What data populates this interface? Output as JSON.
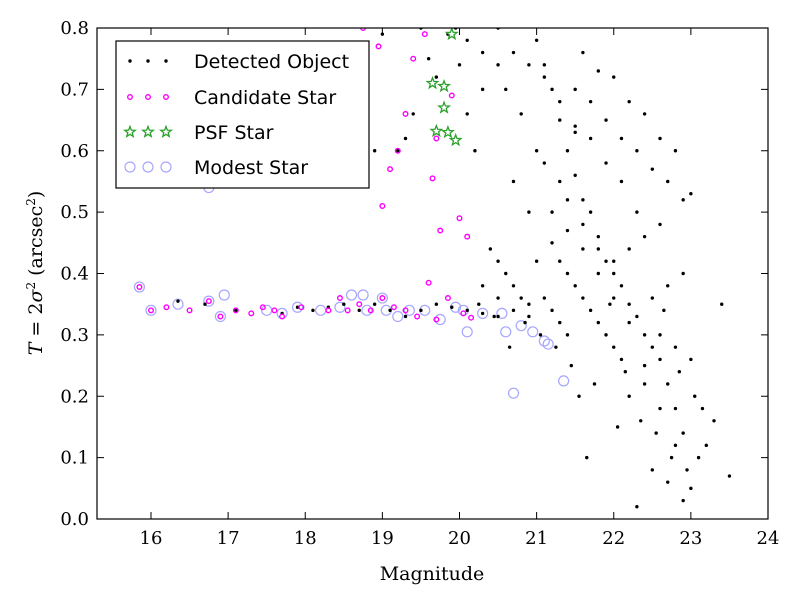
{
  "chart_data": {
    "type": "scatter",
    "title": "",
    "xlabel": "Magnitude",
    "ylabel_parts": {
      "t": "T",
      "eq": " = 2",
      "sigma": "σ",
      "sup": "2",
      "open": " (arcsec",
      "close": ")"
    },
    "xlim": [
      15.3,
      24
    ],
    "ylim": [
      0.0,
      0.8
    ],
    "xticks": [
      16,
      17,
      18,
      19,
      20,
      21,
      22,
      23,
      24
    ],
    "yticks": [
      0.0,
      0.1,
      0.2,
      0.3,
      0.4,
      0.5,
      0.6,
      0.7,
      0.8
    ],
    "grid": false,
    "legend_position": "top-left",
    "series": [
      {
        "name": "Detected Object",
        "marker": "dot",
        "color": "#000000",
        "points": [
          [
            19.85,
            0.79
          ],
          [
            19.95,
            0.8
          ],
          [
            20.1,
            0.78
          ],
          [
            20.3,
            0.76
          ],
          [
            20.5,
            0.8
          ],
          [
            20.6,
            0.7
          ],
          [
            20.8,
            0.66
          ],
          [
            20.2,
            0.6
          ],
          [
            20.7,
            0.55
          ],
          [
            20.9,
            0.5
          ],
          [
            21.0,
            0.78
          ],
          [
            21.1,
            0.74
          ],
          [
            21.2,
            0.7
          ],
          [
            21.3,
            0.65
          ],
          [
            21.4,
            0.6
          ],
          [
            21.5,
            0.56
          ],
          [
            21.6,
            0.52
          ],
          [
            21.7,
            0.5
          ],
          [
            21.8,
            0.46
          ],
          [
            21.9,
            0.42
          ],
          [
            22.0,
            0.4
          ],
          [
            22.1,
            0.38
          ],
          [
            22.2,
            0.35
          ],
          [
            22.3,
            0.33
          ],
          [
            22.4,
            0.3
          ],
          [
            22.5,
            0.28
          ],
          [
            22.6,
            0.26
          ],
          [
            22.7,
            0.22
          ],
          [
            22.8,
            0.18
          ],
          [
            22.9,
            0.14
          ],
          [
            21.2,
            0.45
          ],
          [
            21.3,
            0.42
          ],
          [
            21.4,
            0.4
          ],
          [
            21.5,
            0.38
          ],
          [
            21.6,
            0.36
          ],
          [
            21.7,
            0.34
          ],
          [
            21.8,
            0.32
          ],
          [
            21.9,
            0.3
          ],
          [
            22.0,
            0.28
          ],
          [
            22.1,
            0.26
          ],
          [
            21.0,
            0.6
          ],
          [
            21.1,
            0.58
          ],
          [
            21.3,
            0.55
          ],
          [
            21.4,
            0.52
          ],
          [
            21.6,
            0.48
          ],
          [
            21.8,
            0.44
          ],
          [
            22.0,
            0.42
          ],
          [
            22.2,
            0.44
          ],
          [
            22.4,
            0.46
          ],
          [
            22.6,
            0.48
          ],
          [
            21.5,
            0.7
          ],
          [
            21.7,
            0.68
          ],
          [
            21.9,
            0.65
          ],
          [
            22.1,
            0.62
          ],
          [
            22.3,
            0.6
          ],
          [
            22.5,
            0.57
          ],
          [
            22.7,
            0.55
          ],
          [
            22.9,
            0.52
          ],
          [
            21.6,
            0.76
          ],
          [
            21.8,
            0.73
          ],
          [
            22.0,
            0.72
          ],
          [
            22.2,
            0.68
          ],
          [
            22.4,
            0.66
          ],
          [
            22.6,
            0.62
          ],
          [
            22.8,
            0.6
          ],
          [
            23.0,
            0.53
          ],
          [
            21.1,
            0.36
          ],
          [
            21.2,
            0.34
          ],
          [
            21.3,
            0.32
          ],
          [
            21.4,
            0.3
          ],
          [
            20.4,
            0.44
          ],
          [
            20.5,
            0.42
          ],
          [
            20.6,
            0.4
          ],
          [
            20.7,
            0.38
          ],
          [
            20.8,
            0.36
          ],
          [
            20.9,
            0.35
          ],
          [
            20.3,
            0.38
          ],
          [
            20.5,
            0.36
          ],
          [
            20.7,
            0.34
          ],
          [
            20.9,
            0.33
          ],
          [
            21.0,
            0.42
          ],
          [
            21.2,
            0.5
          ],
          [
            21.4,
            0.47
          ],
          [
            21.6,
            0.44
          ],
          [
            21.8,
            0.4
          ],
          [
            22.0,
            0.36
          ],
          [
            22.2,
            0.32
          ],
          [
            22.4,
            0.22
          ],
          [
            22.6,
            0.18
          ],
          [
            22.8,
            0.12
          ],
          [
            22.3,
            0.02
          ],
          [
            22.9,
            0.03
          ],
          [
            22.5,
            0.08
          ],
          [
            22.7,
            0.06
          ],
          [
            23.0,
            0.05
          ],
          [
            23.1,
            0.1
          ],
          [
            23.2,
            0.12
          ],
          [
            23.3,
            0.16
          ],
          [
            23.4,
            0.35
          ],
          [
            23.5,
            0.07
          ],
          [
            22.2,
            0.2
          ],
          [
            22.4,
            0.25
          ],
          [
            22.6,
            0.3
          ],
          [
            22.8,
            0.28
          ],
          [
            23.0,
            0.26
          ],
          [
            22.9,
            0.4
          ],
          [
            22.7,
            0.38
          ],
          [
            22.5,
            0.36
          ],
          [
            22.3,
            0.5
          ],
          [
            22.1,
            0.55
          ],
          [
            21.9,
            0.58
          ],
          [
            21.7,
            0.62
          ],
          [
            21.5,
            0.64
          ],
          [
            21.3,
            0.68
          ],
          [
            21.1,
            0.72
          ],
          [
            20.9,
            0.74
          ],
          [
            20.7,
            0.76
          ],
          [
            20.5,
            0.74
          ],
          [
            20.3,
            0.7
          ],
          [
            20.1,
            0.66
          ],
          [
            21.65,
            0.1
          ],
          [
            21.55,
            0.2
          ],
          [
            21.45,
            0.25
          ],
          [
            21.25,
            0.28
          ],
          [
            21.05,
            0.3
          ],
          [
            20.85,
            0.32
          ],
          [
            20.45,
            0.33
          ],
          [
            20.25,
            0.35
          ],
          [
            20.65,
            0.28
          ],
          [
            21.75,
            0.22
          ],
          [
            22.05,
            0.15
          ],
          [
            22.15,
            0.24
          ],
          [
            22.35,
            0.16
          ],
          [
            22.55,
            0.14
          ],
          [
            22.75,
            0.1
          ],
          [
            22.95,
            0.08
          ],
          [
            23.05,
            0.2
          ],
          [
            23.15,
            0.18
          ],
          [
            22.85,
            0.24
          ],
          [
            22.65,
            0.34
          ],
          [
            19.2,
            0.6
          ],
          [
            19.3,
            0.62
          ],
          [
            19.4,
            0.66
          ],
          [
            18.5,
            0.62
          ],
          [
            18.9,
            0.6
          ],
          [
            19.6,
            0.75
          ],
          [
            19.7,
            0.72
          ],
          [
            19.0,
            0.79
          ],
          [
            19.5,
            0.8
          ],
          [
            20.0,
            0.74
          ],
          [
            16.35,
            0.355
          ],
          [
            16.7,
            0.35
          ],
          [
            17.1,
            0.34
          ],
          [
            17.7,
            0.335
          ],
          [
            17.9,
            0.345
          ],
          [
            18.1,
            0.34
          ],
          [
            18.3,
            0.345
          ],
          [
            18.5,
            0.35
          ],
          [
            18.7,
            0.34
          ],
          [
            18.9,
            0.35
          ],
          [
            19.1,
            0.34
          ],
          [
            19.3,
            0.33
          ],
          [
            19.5,
            0.34
          ],
          [
            19.7,
            0.35
          ],
          [
            19.9,
            0.345
          ],
          [
            20.1,
            0.34
          ],
          [
            20.3,
            0.335
          ],
          [
            20.5,
            0.33
          ],
          [
            21.5,
            0.63
          ],
          [
            21.95,
            0.35
          ]
        ]
      },
      {
        "name": "Candidate Star",
        "marker": "ring",
        "color": "#ff00ff",
        "points": [
          [
            15.85,
            0.378
          ],
          [
            16.0,
            0.34
          ],
          [
            16.2,
            0.345
          ],
          [
            16.5,
            0.34
          ],
          [
            16.75,
            0.355
          ],
          [
            16.9,
            0.33
          ],
          [
            17.1,
            0.34
          ],
          [
            17.3,
            0.335
          ],
          [
            17.45,
            0.345
          ],
          [
            17.6,
            0.34
          ],
          [
            17.7,
            0.33
          ],
          [
            17.95,
            0.345
          ],
          [
            18.3,
            0.34
          ],
          [
            18.45,
            0.36
          ],
          [
            18.55,
            0.34
          ],
          [
            18.7,
            0.35
          ],
          [
            18.85,
            0.34
          ],
          [
            19.0,
            0.36
          ],
          [
            19.15,
            0.345
          ],
          [
            19.3,
            0.34
          ],
          [
            19.45,
            0.33
          ],
          [
            19.6,
            0.385
          ],
          [
            19.7,
            0.325
          ],
          [
            19.85,
            0.36
          ],
          [
            20.05,
            0.335
          ],
          [
            20.15,
            0.328
          ],
          [
            18.75,
            0.8
          ],
          [
            18.95,
            0.77
          ],
          [
            19.0,
            0.51
          ],
          [
            19.2,
            0.6
          ],
          [
            19.4,
            0.75
          ],
          [
            19.55,
            0.79
          ],
          [
            19.7,
            0.62
          ],
          [
            19.9,
            0.69
          ],
          [
            20.0,
            0.49
          ],
          [
            20.1,
            0.46
          ],
          [
            19.65,
            0.555
          ],
          [
            19.75,
            0.47
          ],
          [
            19.3,
            0.66
          ],
          [
            19.1,
            0.57
          ]
        ]
      },
      {
        "name": "PSF Star",
        "marker": "star",
        "color": "#2ca02c",
        "points": [
          [
            19.9,
            0.79
          ],
          [
            19.65,
            0.71
          ],
          [
            19.8,
            0.705
          ],
          [
            19.8,
            0.67
          ],
          [
            19.7,
            0.632
          ],
          [
            19.85,
            0.63
          ],
          [
            19.95,
            0.617
          ]
        ]
      },
      {
        "name": "Modest Star",
        "marker": "circle",
        "color": "#a6a6ff",
        "points": [
          [
            15.85,
            0.378
          ],
          [
            16.0,
            0.34
          ],
          [
            16.35,
            0.35
          ],
          [
            16.75,
            0.355
          ],
          [
            16.9,
            0.33
          ],
          [
            16.95,
            0.365
          ],
          [
            17.5,
            0.34
          ],
          [
            17.7,
            0.335
          ],
          [
            17.9,
            0.345
          ],
          [
            18.2,
            0.34
          ],
          [
            18.45,
            0.345
          ],
          [
            18.6,
            0.365
          ],
          [
            18.75,
            0.365
          ],
          [
            18.8,
            0.34
          ],
          [
            19.0,
            0.36
          ],
          [
            19.05,
            0.34
          ],
          [
            19.2,
            0.33
          ],
          [
            19.35,
            0.34
          ],
          [
            19.55,
            0.34
          ],
          [
            19.75,
            0.325
          ],
          [
            19.95,
            0.345
          ],
          [
            20.05,
            0.34
          ],
          [
            20.1,
            0.305
          ],
          [
            20.3,
            0.335
          ],
          [
            20.55,
            0.335
          ],
          [
            20.6,
            0.305
          ],
          [
            20.8,
            0.315
          ],
          [
            20.95,
            0.305
          ],
          [
            21.1,
            0.29
          ],
          [
            21.15,
            0.285
          ],
          [
            21.35,
            0.225
          ],
          [
            20.7,
            0.205
          ],
          [
            16.75,
            0.54
          ]
        ]
      }
    ]
  }
}
